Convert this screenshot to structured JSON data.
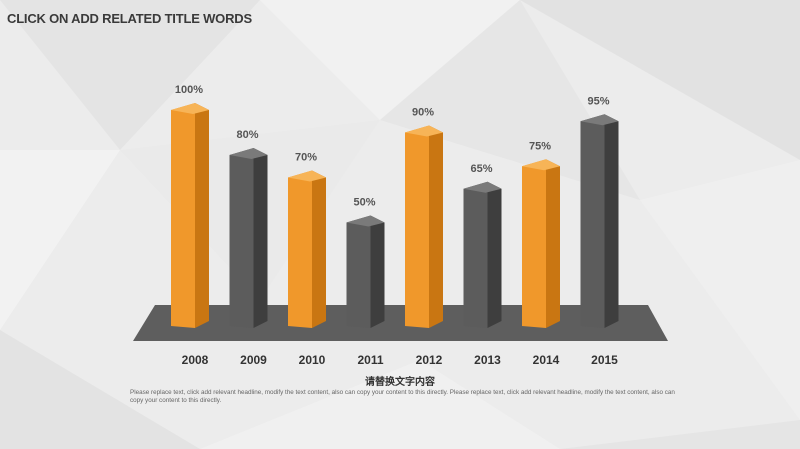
{
  "slide": {
    "title": "CLICK ON ADD RELATED TITLE WORDS",
    "caption_title": "请替换文字内容",
    "caption_body": "Please replace text, click add relevant headline, modify the text content, also can copy your content to this directly. Please replace text, click add relevant headline, modify the text content, also can copy your content to this directly."
  },
  "colors": {
    "orange": "#f0982b",
    "gray": "#5a5a5a",
    "platform": "#5e5e5e",
    "label": "#555555"
  },
  "chart_data": {
    "type": "bar",
    "categories": [
      "2008",
      "2009",
      "2010",
      "2011",
      "2012",
      "2013",
      "2014",
      "2015"
    ],
    "values": [
      100,
      80,
      70,
      50,
      90,
      65,
      75,
      95
    ],
    "value_labels": [
      "100%",
      "80%",
      "70%",
      "50%",
      "90%",
      "65%",
      "75%",
      "95%"
    ],
    "bar_colors": [
      "orange",
      "gray",
      "orange",
      "gray",
      "orange",
      "gray",
      "orange",
      "gray"
    ],
    "ylim": [
      0,
      100
    ],
    "grid": false,
    "legend": "none",
    "style": "3d"
  }
}
